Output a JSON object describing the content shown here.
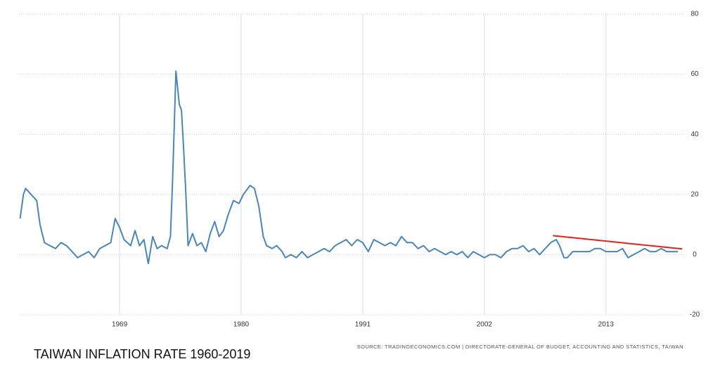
{
  "chart_data": {
    "type": "line",
    "title": "TAIWAN INFLATION RATE 1960-2019",
    "source": "SOURCE: TRADINGECONOMICS.COM | DIRECTORATE-GENERAL OF BUDGET, ACCOUNTING AND STATISTICS, TAIWAN",
    "x": [
      1960.0,
      1960.3,
      1960.5,
      1961.0,
      1961.5,
      1961.8,
      1962.2,
      1962.7,
      1963.2,
      1963.7,
      1964.2,
      1964.7,
      1965.2,
      1965.7,
      1966.2,
      1966.7,
      1967.2,
      1967.7,
      1968.2,
      1968.6,
      1969.0,
      1969.4,
      1970.0,
      1970.4,
      1970.8,
      1971.2,
      1971.6,
      1972.0,
      1972.4,
      1972.8,
      1973.3,
      1973.6,
      1973.8,
      1974.1,
      1974.4,
      1974.6,
      1974.8,
      1975.0,
      1975.2,
      1975.6,
      1976.0,
      1976.4,
      1976.8,
      1977.2,
      1977.6,
      1978.0,
      1978.4,
      1978.8,
      1979.3,
      1979.8,
      1980.2,
      1980.8,
      1981.2,
      1981.6,
      1982.0,
      1982.3,
      1982.8,
      1983.2,
      1983.7,
      1984.0,
      1984.5,
      1985.0,
      1985.5,
      1986.0,
      1986.5,
      1987.0,
      1987.5,
      1988.0,
      1988.5,
      1989.0,
      1989.5,
      1990.0,
      1990.5,
      1991.0,
      1991.5,
      1992.0,
      1992.5,
      1993.0,
      1993.5,
      1994.0,
      1994.5,
      1995.0,
      1995.5,
      1996.0,
      1996.5,
      1997.0,
      1997.5,
      1998.0,
      1998.5,
      1999.0,
      1999.5,
      2000.0,
      2000.5,
      2001.0,
      2001.5,
      2002.0,
      2002.5,
      2003.0,
      2003.5,
      2004.0,
      2004.5,
      2005.0,
      2005.5,
      2006.0,
      2006.5,
      2007.0,
      2007.5,
      2008.0,
      2008.5,
      2008.8,
      2009.2,
      2009.5,
      2010.0,
      2010.5,
      2011.0,
      2011.5,
      2012.0,
      2012.5,
      2013.0,
      2013.5,
      2014.0,
      2014.5,
      2015.0,
      2015.5,
      2016.0,
      2016.5,
      2017.0,
      2017.5,
      2018.0,
      2018.5,
      2019.0,
      2019.5
    ],
    "series": [
      {
        "color": "#4a86b8",
        "values": [
          12,
          20,
          22,
          20,
          18,
          10,
          4,
          3,
          2,
          4,
          3,
          1,
          -1,
          0,
          1,
          -1,
          2,
          3,
          4,
          12,
          9,
          5,
          3,
          8,
          3,
          5,
          -3,
          6,
          2,
          3,
          2,
          6,
          25,
          61,
          50,
          48,
          35,
          20,
          3,
          7,
          3,
          4,
          1,
          7,
          11,
          6,
          8,
          13,
          18,
          17,
          20,
          23,
          22,
          16,
          6,
          3,
          2,
          3,
          1,
          -1,
          0,
          -1,
          1,
          -1,
          0,
          1,
          2,
          1,
          3,
          4,
          5,
          3,
          5,
          4,
          1,
          5,
          4,
          3,
          4,
          3,
          6,
          4,
          4,
          2,
          3,
          1,
          2,
          1,
          0,
          1,
          0,
          1,
          -1,
          1,
          0,
          -1,
          0,
          0,
          -1,
          1,
          2,
          2,
          3,
          1,
          2,
          0,
          2,
          4,
          5,
          3,
          -1,
          -1,
          1,
          1,
          1,
          1,
          2,
          2,
          1,
          1,
          1,
          2,
          -1,
          0,
          1,
          2,
          1,
          1,
          2,
          1,
          1,
          1
        ]
      }
    ],
    "trend_line": {
      "x": [
        2008.2,
        2019.9
      ],
      "values": [
        6.3,
        1.9
      ],
      "color": "#e8201a"
    },
    "xlim": [
      1959.9,
      2020.2
    ],
    "xticks": [
      1969,
      1980,
      1991,
      2002,
      2013
    ],
    "ylim": [
      -20,
      80
    ],
    "yticks": [
      -20,
      0,
      20,
      40,
      60,
      80
    ],
    "grid": true
  }
}
